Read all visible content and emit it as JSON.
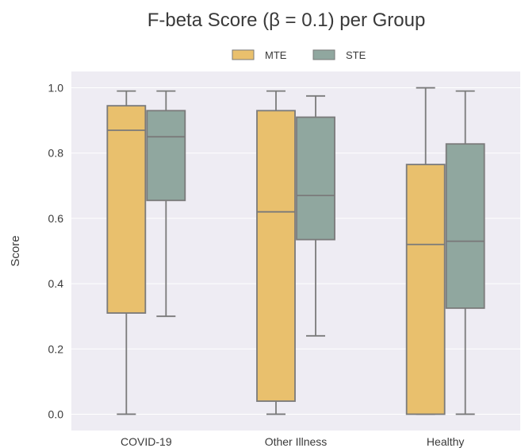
{
  "chart_data": {
    "type": "box",
    "title": "F-beta Score (β = 0.1) per Group",
    "xlabel": "",
    "ylabel": "Score",
    "ylim": [
      -0.05,
      1.05
    ],
    "yticks": [
      "0.0",
      "0.2",
      "0.4",
      "0.6",
      "0.8",
      "1.0"
    ],
    "ytick_values": [
      0.0,
      0.2,
      0.4,
      0.6,
      0.8,
      1.0
    ],
    "categories": [
      "COVID-19",
      "Other Illness",
      "Healthy"
    ],
    "grid": true,
    "legend_position": "top-center",
    "series": [
      {
        "name": "MTE",
        "color": "#e9c06d",
        "boxes": [
          {
            "min": 0.0,
            "q1": 0.31,
            "median": 0.87,
            "q3": 0.945,
            "max": 0.99
          },
          {
            "min": 0.0,
            "q1": 0.04,
            "median": 0.62,
            "q3": 0.93,
            "max": 0.99
          },
          {
            "min": 0.0,
            "q1": 0.0,
            "median": 0.52,
            "q3": 0.765,
            "max": 1.0
          }
        ]
      },
      {
        "name": "STE",
        "color": "#90a79f",
        "boxes": [
          {
            "min": 0.3,
            "q1": 0.655,
            "median": 0.85,
            "q3": 0.93,
            "max": 0.99
          },
          {
            "min": 0.24,
            "q1": 0.535,
            "median": 0.67,
            "q3": 0.91,
            "max": 0.975
          },
          {
            "min": 0.0,
            "q1": 0.325,
            "median": 0.53,
            "q3": 0.828,
            "max": 0.99
          }
        ]
      }
    ]
  }
}
